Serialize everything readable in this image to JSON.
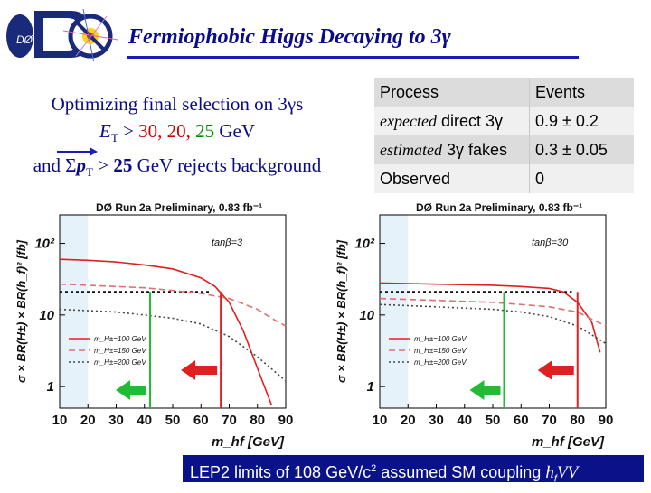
{
  "header": {
    "title": "Fermiophobic Higgs Decaying to 3γ",
    "logo_text": "DØ"
  },
  "left_text": {
    "line1": "Optimizing final selection on 3γs",
    "line2_a": "E",
    "line2_sub": "T",
    "line2_b": " > ",
    "line2_v1": "30, ",
    "line2_v2": "20, ",
    "line2_v3": "25",
    "line2_unit": " GeV",
    "line3_a": "and Σ",
    "line3_p": "p",
    "line3_sub": "T",
    "line3_b": " > ",
    "line3_v": "25",
    "line3_c": " GeV rejects background"
  },
  "results_table": {
    "headers": [
      "Process",
      "Events"
    ],
    "rows": [
      {
        "label_italic": "expected",
        "label_rest": " direct 3γ",
        "value": "0.9 ± 0.2"
      },
      {
        "label_italic": "estimated",
        "label_rest": " 3γ fakes",
        "value": "0.3 ± 0.05"
      },
      {
        "label_italic": "",
        "label_rest": "Observed",
        "value": "0"
      }
    ]
  },
  "chart_data": [
    {
      "type": "line",
      "title": "DØ Run 2a Preliminary, 0.83 fb⁻¹",
      "annotation": "tanβ=3",
      "xlabel": "m_hf [GeV]",
      "ylabel": "σ × BR(H±) × BR(h_f)² [fb]",
      "x_ticks": [
        "10",
        "20",
        "30",
        "40",
        "50",
        "60",
        "70",
        "80",
        "90"
      ],
      "y_ticks": [
        "1",
        "10",
        "10²"
      ],
      "xlim": [
        10,
        90
      ],
      "ylim": [
        0.5,
        250
      ],
      "yscale": "log",
      "limit_curve": {
        "x": [
          10,
          40,
          45,
          50,
          55,
          60,
          63
        ],
        "y": [
          21,
          21,
          21,
          21,
          21,
          21,
          21
        ]
      },
      "series": [
        {
          "name": "m_H±=100 GeV",
          "color": "#e02020",
          "style": "solid",
          "x": [
            10,
            20,
            30,
            40,
            50,
            60,
            65,
            70,
            75,
            80,
            85
          ],
          "y": [
            60,
            58,
            55,
            50,
            44,
            33,
            25,
            15,
            6,
            1.8,
            0.55
          ]
        },
        {
          "name": "m_H±=150 GeV",
          "color": "#e07070",
          "style": "dashed",
          "x": [
            10,
            20,
            30,
            40,
            50,
            60,
            70,
            80,
            85,
            90
          ],
          "y": [
            27,
            26,
            25,
            24,
            22,
            20,
            17,
            12,
            9,
            7
          ]
        },
        {
          "name": "m_H±=200 GeV",
          "color": "#444444",
          "style": "dotted",
          "x": [
            10,
            20,
            30,
            40,
            50,
            60,
            70,
            80,
            90
          ],
          "y": [
            12,
            11.5,
            11,
            10,
            9,
            7.5,
            5,
            2.6,
            1.2
          ]
        }
      ],
      "green_limit_x": 42,
      "red_limit_x": 67
    },
    {
      "type": "line",
      "title": "DØ Run 2a Preliminary, 0.83 fb⁻¹",
      "annotation": "tanβ=30",
      "xlabel": "m_hf [GeV]",
      "ylabel": "σ × BR(H±) × BR(h_f)² [fb]",
      "x_ticks": [
        "10",
        "20",
        "30",
        "40",
        "50",
        "60",
        "70",
        "80",
        "90"
      ],
      "y_ticks": [
        "1",
        "10",
        "10²"
      ],
      "xlim": [
        10,
        90
      ],
      "ylim": [
        0.5,
        250
      ],
      "yscale": "log",
      "limit_curve": {
        "x": [
          10,
          40,
          50,
          60,
          70,
          78
        ],
        "y": [
          21,
          21,
          21,
          21,
          21,
          21
        ]
      },
      "series": [
        {
          "name": "m_H±=100 GeV",
          "color": "#e02020",
          "style": "solid",
          "x": [
            10,
            20,
            30,
            40,
            50,
            60,
            70,
            75,
            80,
            85,
            88
          ],
          "y": [
            28,
            27.5,
            27,
            26.5,
            26,
            25,
            23.5,
            21,
            15,
            8,
            3
          ]
        },
        {
          "name": "m_H±=150 GeV",
          "color": "#e07070",
          "style": "dashed",
          "x": [
            10,
            20,
            30,
            40,
            50,
            60,
            70,
            80,
            90
          ],
          "y": [
            17,
            16.5,
            16,
            15.5,
            15,
            14,
            13,
            11,
            7
          ]
        },
        {
          "name": "m_H±=200 GeV",
          "color": "#444444",
          "style": "dotted",
          "x": [
            10,
            20,
            30,
            40,
            50,
            60,
            70,
            80,
            90
          ],
          "y": [
            14,
            13.5,
            13,
            12.5,
            12,
            11,
            9.5,
            7,
            4
          ]
        }
      ],
      "green_limit_x": 54,
      "red_limit_x": 80
    }
  ],
  "footer": {
    "text_a": "LEP2 limits of 108 GeV/c",
    "text_sup": "2",
    "text_b": " assumed SM coupling ",
    "text_c": "h",
    "text_sub": "f",
    "text_d": "VV"
  }
}
